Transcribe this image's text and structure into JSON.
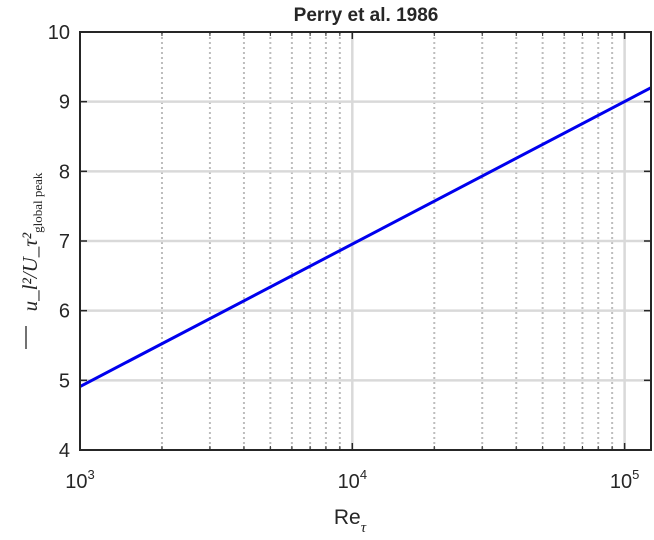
{
  "chart_data": {
    "type": "line",
    "title": "Perry et al. 1986",
    "xlabel_base": "Re",
    "xlabel_sub": "τ",
    "ylabel_main": "u_l²/U_τ²",
    "ylabel_sub": "global peak",
    "x_scale": "log",
    "xlim": [
      1000,
      125000
    ],
    "ylim": [
      4,
      10
    ],
    "x_ticks": [
      {
        "base": "10",
        "exp": "3",
        "value": 1000
      },
      {
        "base": "10",
        "exp": "4",
        "value": 10000
      },
      {
        "base": "10",
        "exp": "5",
        "value": 100000
      }
    ],
    "y_ticks": [
      "4",
      "5",
      "6",
      "7",
      "8",
      "9",
      "10"
    ],
    "grid": true,
    "minor_grid": true,
    "line_color": "#0000ee",
    "series": [
      {
        "x": [
          1000,
          125000
        ],
        "y": [
          4.91,
          9.2
        ]
      }
    ]
  }
}
